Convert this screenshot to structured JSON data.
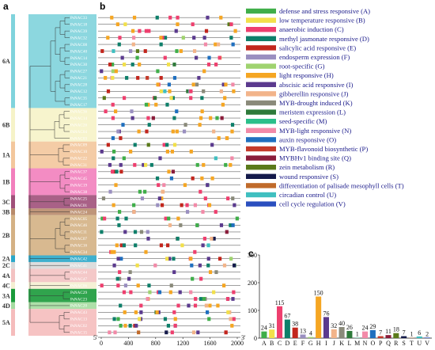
{
  "panels": {
    "a": "a",
    "b": "b",
    "c": "c"
  },
  "groups": [
    {
      "name": "6A",
      "genes": [
        "PsNAC33",
        "PsNAC18",
        "PsNAC39",
        "PsNAC32",
        "PsNAC08",
        "PsNAC40",
        "PsNAC14",
        "PsNAC30",
        "PsNAC27",
        "PsNAC21",
        "PsNAC28",
        "PsNAC12",
        "PsNAC35",
        "PsNAC17"
      ],
      "color": "#7fd3dc"
    },
    {
      "name": "6B",
      "genes": [
        "PsNAC36",
        "PsNAC14",
        "PsNAC26",
        "PsNAC04",
        "PsNAC03"
      ],
      "color": "#f6f3c8"
    },
    {
      "name": "1A",
      "genes": [
        "PsNAC09",
        "PsNAC10",
        "PsNAC22",
        "PsNAC31"
      ],
      "color": "#f3c79c"
    },
    {
      "name": "1B",
      "genes": [
        "PsNAC37",
        "PsNAC45",
        "PsNAC19",
        "PsNAC38"
      ],
      "color": "#f27fbd"
    },
    {
      "name": "3C",
      "genes": [
        "PsNAC25",
        "PsNAC01"
      ],
      "color": "#a0507a"
    },
    {
      "name": "3B",
      "genes": [
        "PsNAC24"
      ],
      "color": "#b88a6a"
    },
    {
      "name": "2B",
      "genes": [
        "PsNAC05",
        "PsNAC46",
        "PsNAC11",
        "PsNAC07",
        "PsNAC16",
        "PsNAC34"
      ],
      "color": "#d4b184"
    },
    {
      "name": "2A",
      "genes": [
        "PsNAC42"
      ],
      "color": "#2aa7c9"
    },
    {
      "name": "2C",
      "genes": [
        "PsNAC41"
      ],
      "color": "#d9d9d9"
    },
    {
      "name": "4A",
      "genes": [
        "PsNAC44",
        "PsNAC47"
      ],
      "color": "#f3c2c2"
    },
    {
      "name": "4C",
      "genes": [
        "PsNAC06"
      ],
      "color": "#f5efd2"
    },
    {
      "name": "3A",
      "genes": [
        "PsNAC29",
        "PsNAC23"
      ],
      "color": "#1a9a3a"
    },
    {
      "name": "4D",
      "genes": [
        "PsNAC20"
      ],
      "color": "#a5dba0"
    },
    {
      "name": "5A",
      "genes": [
        "PsNAC43",
        "PsNAC13",
        "PsNAC02",
        "PsNAC15"
      ],
      "color": "#f5bcbc"
    }
  ],
  "motif_axis": {
    "ticks": [
      "0",
      "400",
      "800",
      "1200",
      "1600",
      "2000"
    ],
    "left_end": "5'",
    "right_end": "3'"
  },
  "legend": [
    {
      "code": "A",
      "label": "defense and stress responsive (A)",
      "color": "#3fae49"
    },
    {
      "code": "B",
      "label": "low temperature responsive (B)",
      "color": "#f2e04a"
    },
    {
      "code": "C",
      "label": "anaerobic induction (C)",
      "color": "#ee3f6e"
    },
    {
      "code": "D",
      "label": "methyl jasmonate responsive (D)",
      "color": "#0e7f6a"
    },
    {
      "code": "E",
      "label": "salicylic acid responsive (E)",
      "color": "#c2261d"
    },
    {
      "code": "F",
      "label": "endosperm expression (F)",
      "color": "#9a8fc0"
    },
    {
      "code": "G",
      "label": "root-specific (G)",
      "color": "#9fd36f"
    },
    {
      "code": "H",
      "label": "light responsive (H)",
      "color": "#f5a623"
    },
    {
      "code": "I",
      "label": "abscisic acid responsive (I)",
      "color": "#5b3a8e"
    },
    {
      "code": "J",
      "label": "gibberellin responsive (J)",
      "color": "#f2b48a"
    },
    {
      "code": "K",
      "label": "MYB-drought induced (K)",
      "color": "#8a8a7a"
    },
    {
      "code": "L",
      "label": "meristem expression (L)",
      "color": "#2e7a3a"
    },
    {
      "code": "M",
      "label": "seed-specific (M)",
      "color": "#2bbf8a"
    },
    {
      "code": "N",
      "label": "MYB-light responsive (N)",
      "color": "#f28aa8"
    },
    {
      "code": "O",
      "label": "auxin responsive (O)",
      "color": "#1f6fbf"
    },
    {
      "code": "P",
      "label": "MYB-flavonoid biosynthetic (P)",
      "color": "#c43a2a"
    },
    {
      "code": "Q",
      "label": "MYBHv1 binding site (Q)",
      "color": "#8a1c3a"
    },
    {
      "code": "R",
      "label": "zein metabolism (R)",
      "color": "#5a7a1a"
    },
    {
      "code": "S",
      "label": "wound responsive (S)",
      "color": "#141a4a"
    },
    {
      "code": "T",
      "label": "differentiation of palisade mesophyll cells (T)",
      "color": "#c06a2a"
    },
    {
      "code": "U",
      "label": "circadian control (U)",
      "color": "#3fbfc0"
    },
    {
      "code": "V",
      "label": "cell cycle regulation (V)",
      "color": "#2a4fbf"
    }
  ],
  "chart_data": {
    "type": "bar",
    "title": "",
    "xlabel": "",
    "ylabel": "",
    "ylim": [
      0,
      300
    ],
    "yticks": [
      0,
      100,
      200,
      300
    ],
    "categories": [
      "A",
      "B",
      "C",
      "D",
      "E",
      "F",
      "G",
      "H",
      "I",
      "J",
      "K",
      "L",
      "M",
      "N",
      "O",
      "P",
      "Q",
      "R",
      "S",
      "T",
      "U",
      "V"
    ],
    "values": [
      24,
      31,
      115,
      67,
      38,
      13,
      4,
      150,
      76,
      32,
      40,
      26,
      1,
      24,
      29,
      7,
      11,
      18,
      7,
      1,
      6,
      2
    ],
    "colors": [
      "#3fae49",
      "#f2e04a",
      "#ee3f6e",
      "#0e7f6a",
      "#c2261d",
      "#9a8fc0",
      "#9fd36f",
      "#f5a623",
      "#5b3a8e",
      "#f2b48a",
      "#8a8a7a",
      "#2e7a3a",
      "#2bbf8a",
      "#f28aa8",
      "#1f6fbf",
      "#c43a2a",
      "#8a1c3a",
      "#5a7a1a",
      "#141a4a",
      "#c06a2a",
      "#3fbfc0",
      "#2a4fbf"
    ]
  }
}
